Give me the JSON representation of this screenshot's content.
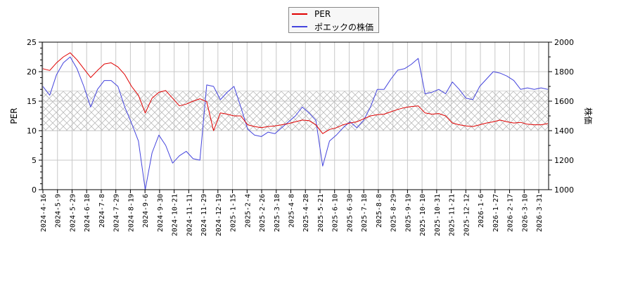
{
  "chart_data": {
    "type": "line",
    "title": "",
    "legend": [
      {
        "name": "PER",
        "color": "#e00000"
      },
      {
        "name": "ポエックの株価",
        "color": "#4444dd"
      }
    ],
    "legend_position": "top-center",
    "grid": true,
    "ylabel_left": "PER",
    "ylabel_right": "株価",
    "ylim_left": [
      0,
      25
    ],
    "ylim_right": [
      1000,
      2000
    ],
    "yticks_left": [
      "0",
      "5",
      "10",
      "15",
      "20",
      "25"
    ],
    "yticks_right": [
      "1000",
      "1200",
      "1400",
      "1600",
      "1800",
      "2000"
    ],
    "shaded_band_per": [
      10,
      16.7
    ],
    "x_tick_labels": [
      "2024-4-16",
      "2024-5-9",
      "2024-5-29",
      "2024-6-18",
      "2024-7-8",
      "2024-7-29",
      "2024-8-19",
      "2024-9-6",
      "2024-9-30",
      "2024-10-21",
      "2024-11-11",
      "2024-11-29",
      "2024-12-19",
      "2025-1-15",
      "2025-2-4",
      "2025-2-26",
      "2025-3-18",
      "2025-4-8",
      "2025-4-28",
      "2025-5-21",
      "2025-6-10",
      "2025-6-30",
      "2025-7-18",
      "2025-8-8",
      "2025-8-29",
      "2025-9-19",
      "2025-10-10",
      "2025-10-31",
      "2025-11-21",
      "2025-12-12",
      "2026-1-6",
      "2026-1-27",
      "2026-2-17",
      "2026-3-10",
      "2026-3-31"
    ],
    "series": [
      {
        "name": "PER",
        "axis": "left",
        "values": [
          20.5,
          20.2,
          21.5,
          22.5,
          23.2,
          22.0,
          20.5,
          19.0,
          20.2,
          21.3,
          21.5,
          20.8,
          19.5,
          17.5,
          16.0,
          13.0,
          15.5,
          16.5,
          16.8,
          15.5,
          14.2,
          14.5,
          15.0,
          15.4,
          14.9,
          10.0,
          13.0,
          12.8,
          12.5,
          12.5,
          11.0,
          10.7,
          10.5,
          10.7,
          10.8,
          11.0,
          11.2,
          11.5,
          11.8,
          11.7,
          11.0,
          9.5,
          10.2,
          10.5,
          11.0,
          11.3,
          11.5,
          12.0,
          12.5,
          12.7,
          12.8,
          13.2,
          13.6,
          13.9,
          14.1,
          14.2,
          13.0,
          12.8,
          12.9,
          12.5,
          11.3,
          11.0,
          10.8,
          10.7,
          11.0,
          11.3,
          11.5,
          11.8,
          11.5,
          11.3,
          11.4,
          11.1,
          11.0,
          11.0,
          11.2
        ]
      },
      {
        "name": "ポエックの株価",
        "axis": "right",
        "values": [
          1700,
          1640,
          1780,
          1860,
          1900,
          1820,
          1700,
          1560,
          1680,
          1740,
          1740,
          1700,
          1560,
          1450,
          1330,
          1000,
          1250,
          1370,
          1300,
          1180,
          1230,
          1260,
          1210,
          1200,
          1710,
          1700,
          1610,
          1660,
          1700,
          1560,
          1410,
          1370,
          1360,
          1390,
          1380,
          1420,
          1460,
          1500,
          1560,
          1520,
          1470,
          1160,
          1330,
          1370,
          1420,
          1460,
          1420,
          1470,
          1560,
          1680,
          1680,
          1750,
          1810,
          1820,
          1850,
          1890,
          1650,
          1660,
          1680,
          1650,
          1730,
          1680,
          1620,
          1610,
          1700,
          1750,
          1800,
          1790,
          1770,
          1740,
          1680,
          1690,
          1680,
          1690,
          1680
        ]
      }
    ]
  }
}
